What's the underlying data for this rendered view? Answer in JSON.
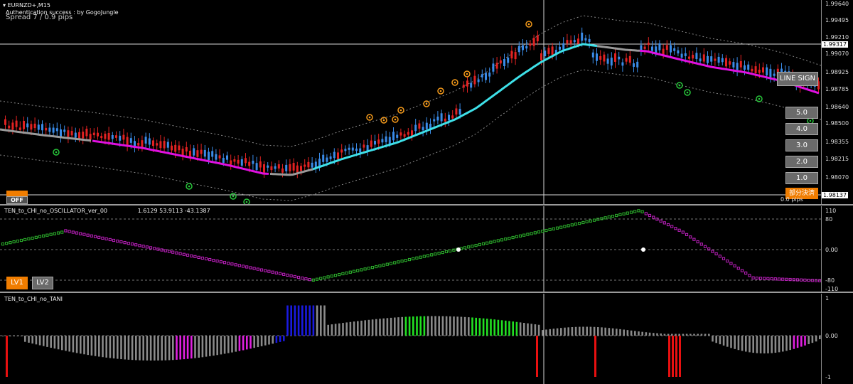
{
  "main": {
    "symbol": "EURNZD+,M15",
    "auth_text": "Authentication success : by GogoJungle",
    "spread_text": "Spread 7 / 0.9 pips",
    "current_price": "1.99317",
    "cursor_price": "1.98137",
    "price_axis": [
      "1.99640",
      "1.99495",
      "1.99210",
      "1.99070",
      "1.98925",
      "1.98785",
      "1.98640",
      "1.98500",
      "1.98355",
      "1.98215",
      "1.98070"
    ],
    "buttons": {
      "line_sign": "LINE SIGN",
      "lot_5": "5.0",
      "lot_4": "4.0",
      "lot_3": "3.0",
      "lot_2": "2.0",
      "lot_1": "1.0",
      "partial_close": "部分決済",
      "off": "OFF"
    },
    "pips_text": "0.0 pips"
  },
  "osc": {
    "title": "TEN_to_CHI_no_OSCILLATOR_ver_00",
    "values_text": "1.6129 53.9113 -43.1387",
    "axis": [
      "110",
      "80",
      "0.00",
      "-80",
      "-110"
    ],
    "lv1": "LV1",
    "lv2": "LV2"
  },
  "tani": {
    "title": "TEN_to_CHI_no_TANI",
    "axis": [
      "1",
      "0.00",
      "-1"
    ]
  },
  "colors": {
    "bull": "#3a8be8",
    "bear": "#e32222",
    "ma_up": "#3ee0e8",
    "ma_down": "#e010e0",
    "signal_orange": "#f59a1a",
    "signal_green": "#27c53a",
    "osc_green": "#2db52d",
    "osc_magenta": "#c020c0",
    "hist_gray": "#8a8a8a",
    "hist_blue": "#1a1ae0",
    "hist_green": "#22e022",
    "hist_red": "#e81010",
    "hist_magenta": "#e020e0"
  }
}
